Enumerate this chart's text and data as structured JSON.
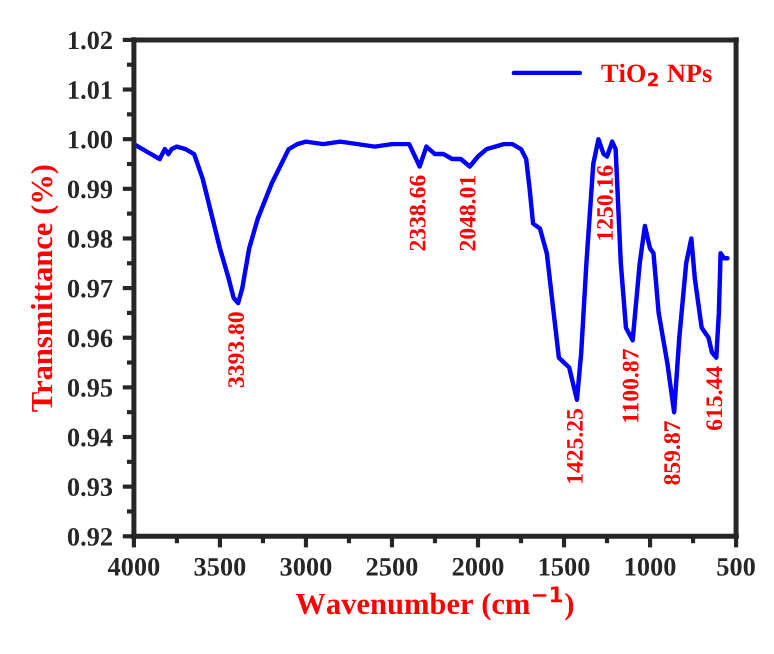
{
  "chart_data": {
    "type": "line",
    "xlabel": "Wavenumber (cm$^{−1}$)",
    "ylabel": "Transmittance (%)",
    "xlim": [
      4000,
      500
    ],
    "xticks": [
      4000,
      3500,
      3000,
      2500,
      2000,
      1500,
      1000,
      500
    ],
    "ylim": [
      0.92,
      1.02
    ],
    "yticks": [
      {
        "value": 0.92,
        "label": "0.92"
      },
      {
        "value": 0.93,
        "label": "0.93"
      },
      {
        "value": 0.94,
        "label": "0.94"
      },
      {
        "value": 0.95,
        "label": "0.95"
      },
      {
        "value": 0.96,
        "label": "0.96"
      },
      {
        "value": 0.97,
        "label": "0.97"
      },
      {
        "value": 0.98,
        "label": "0.98"
      },
      {
        "value": 0.99,
        "label": "0.99"
      },
      {
        "value": 1.0,
        "label": "1.00"
      },
      {
        "value": 1.01,
        "label": "1.01"
      },
      {
        "value": 1.02,
        "label": "1.02"
      }
    ],
    "grid": false,
    "legend": "top right",
    "line_style": "solid",
    "series": [
      {
        "name": "TiO$_{2}$ NPs",
        "color": "#0000ff",
        "x": [
          4000,
          3950,
          3900,
          3850,
          3820,
          3800,
          3780,
          3750,
          3700,
          3650,
          3600,
          3550,
          3500,
          3450,
          3420,
          3394,
          3370,
          3330,
          3280,
          3200,
          3100,
          3050,
          3000,
          2900,
          2800,
          2700,
          2600,
          2500,
          2400,
          2339,
          2300,
          2250,
          2200,
          2150,
          2100,
          2048,
          2000,
          1950,
          1850,
          1800,
          1750,
          1720,
          1700,
          1680,
          1640,
          1600,
          1560,
          1530,
          1500,
          1470,
          1425,
          1400,
          1370,
          1330,
          1300,
          1270,
          1250,
          1220,
          1200,
          1170,
          1140,
          1101,
          1060,
          1030,
          1000,
          980,
          950,
          900,
          860,
          830,
          790,
          760,
          740,
          700,
          660,
          640,
          615,
          600,
          590,
          570,
          550
        ],
        "values": [
          0.999,
          0.998,
          0.997,
          0.996,
          0.998,
          0.997,
          0.998,
          0.9985,
          0.998,
          0.997,
          0.992,
          0.985,
          0.978,
          0.972,
          0.968,
          0.967,
          0.97,
          0.978,
          0.984,
          0.991,
          0.998,
          0.999,
          0.9995,
          0.999,
          0.9995,
          0.999,
          0.9985,
          0.999,
          0.999,
          0.9945,
          0.9985,
          0.997,
          0.997,
          0.996,
          0.996,
          0.9945,
          0.9965,
          0.998,
          0.999,
          0.999,
          0.998,
          0.996,
          0.99,
          0.983,
          0.982,
          0.977,
          0.965,
          0.956,
          0.955,
          0.954,
          0.9475,
          0.957,
          0.975,
          0.995,
          1.0,
          0.997,
          0.9965,
          0.9995,
          0.998,
          0.975,
          0.962,
          0.9595,
          0.975,
          0.9825,
          0.978,
          0.977,
          0.965,
          0.955,
          0.945,
          0.96,
          0.975,
          0.98,
          0.972,
          0.962,
          0.96,
          0.957,
          0.956,
          0.965,
          0.977,
          0.976,
          0.976
        ]
      }
    ],
    "annotations": [
      {
        "text": "3393.80",
        "x": 3394,
        "y": 0.967
      },
      {
        "text": "2338.66",
        "x": 2339,
        "y": 0.9945
      },
      {
        "text": "2048.01",
        "x": 2048,
        "y": 0.9945
      },
      {
        "text": "1425.25",
        "x": 1425,
        "y": 0.9475
      },
      {
        "text": "1250.16",
        "x": 1250,
        "y": 0.9965
      },
      {
        "text": "1100.87",
        "x": 1101,
        "y": 0.9595
      },
      {
        "text": "859.87",
        "x": 860,
        "y": 0.945
      },
      {
        "text": "615.44",
        "x": 615,
        "y": 0.956
      }
    ]
  }
}
